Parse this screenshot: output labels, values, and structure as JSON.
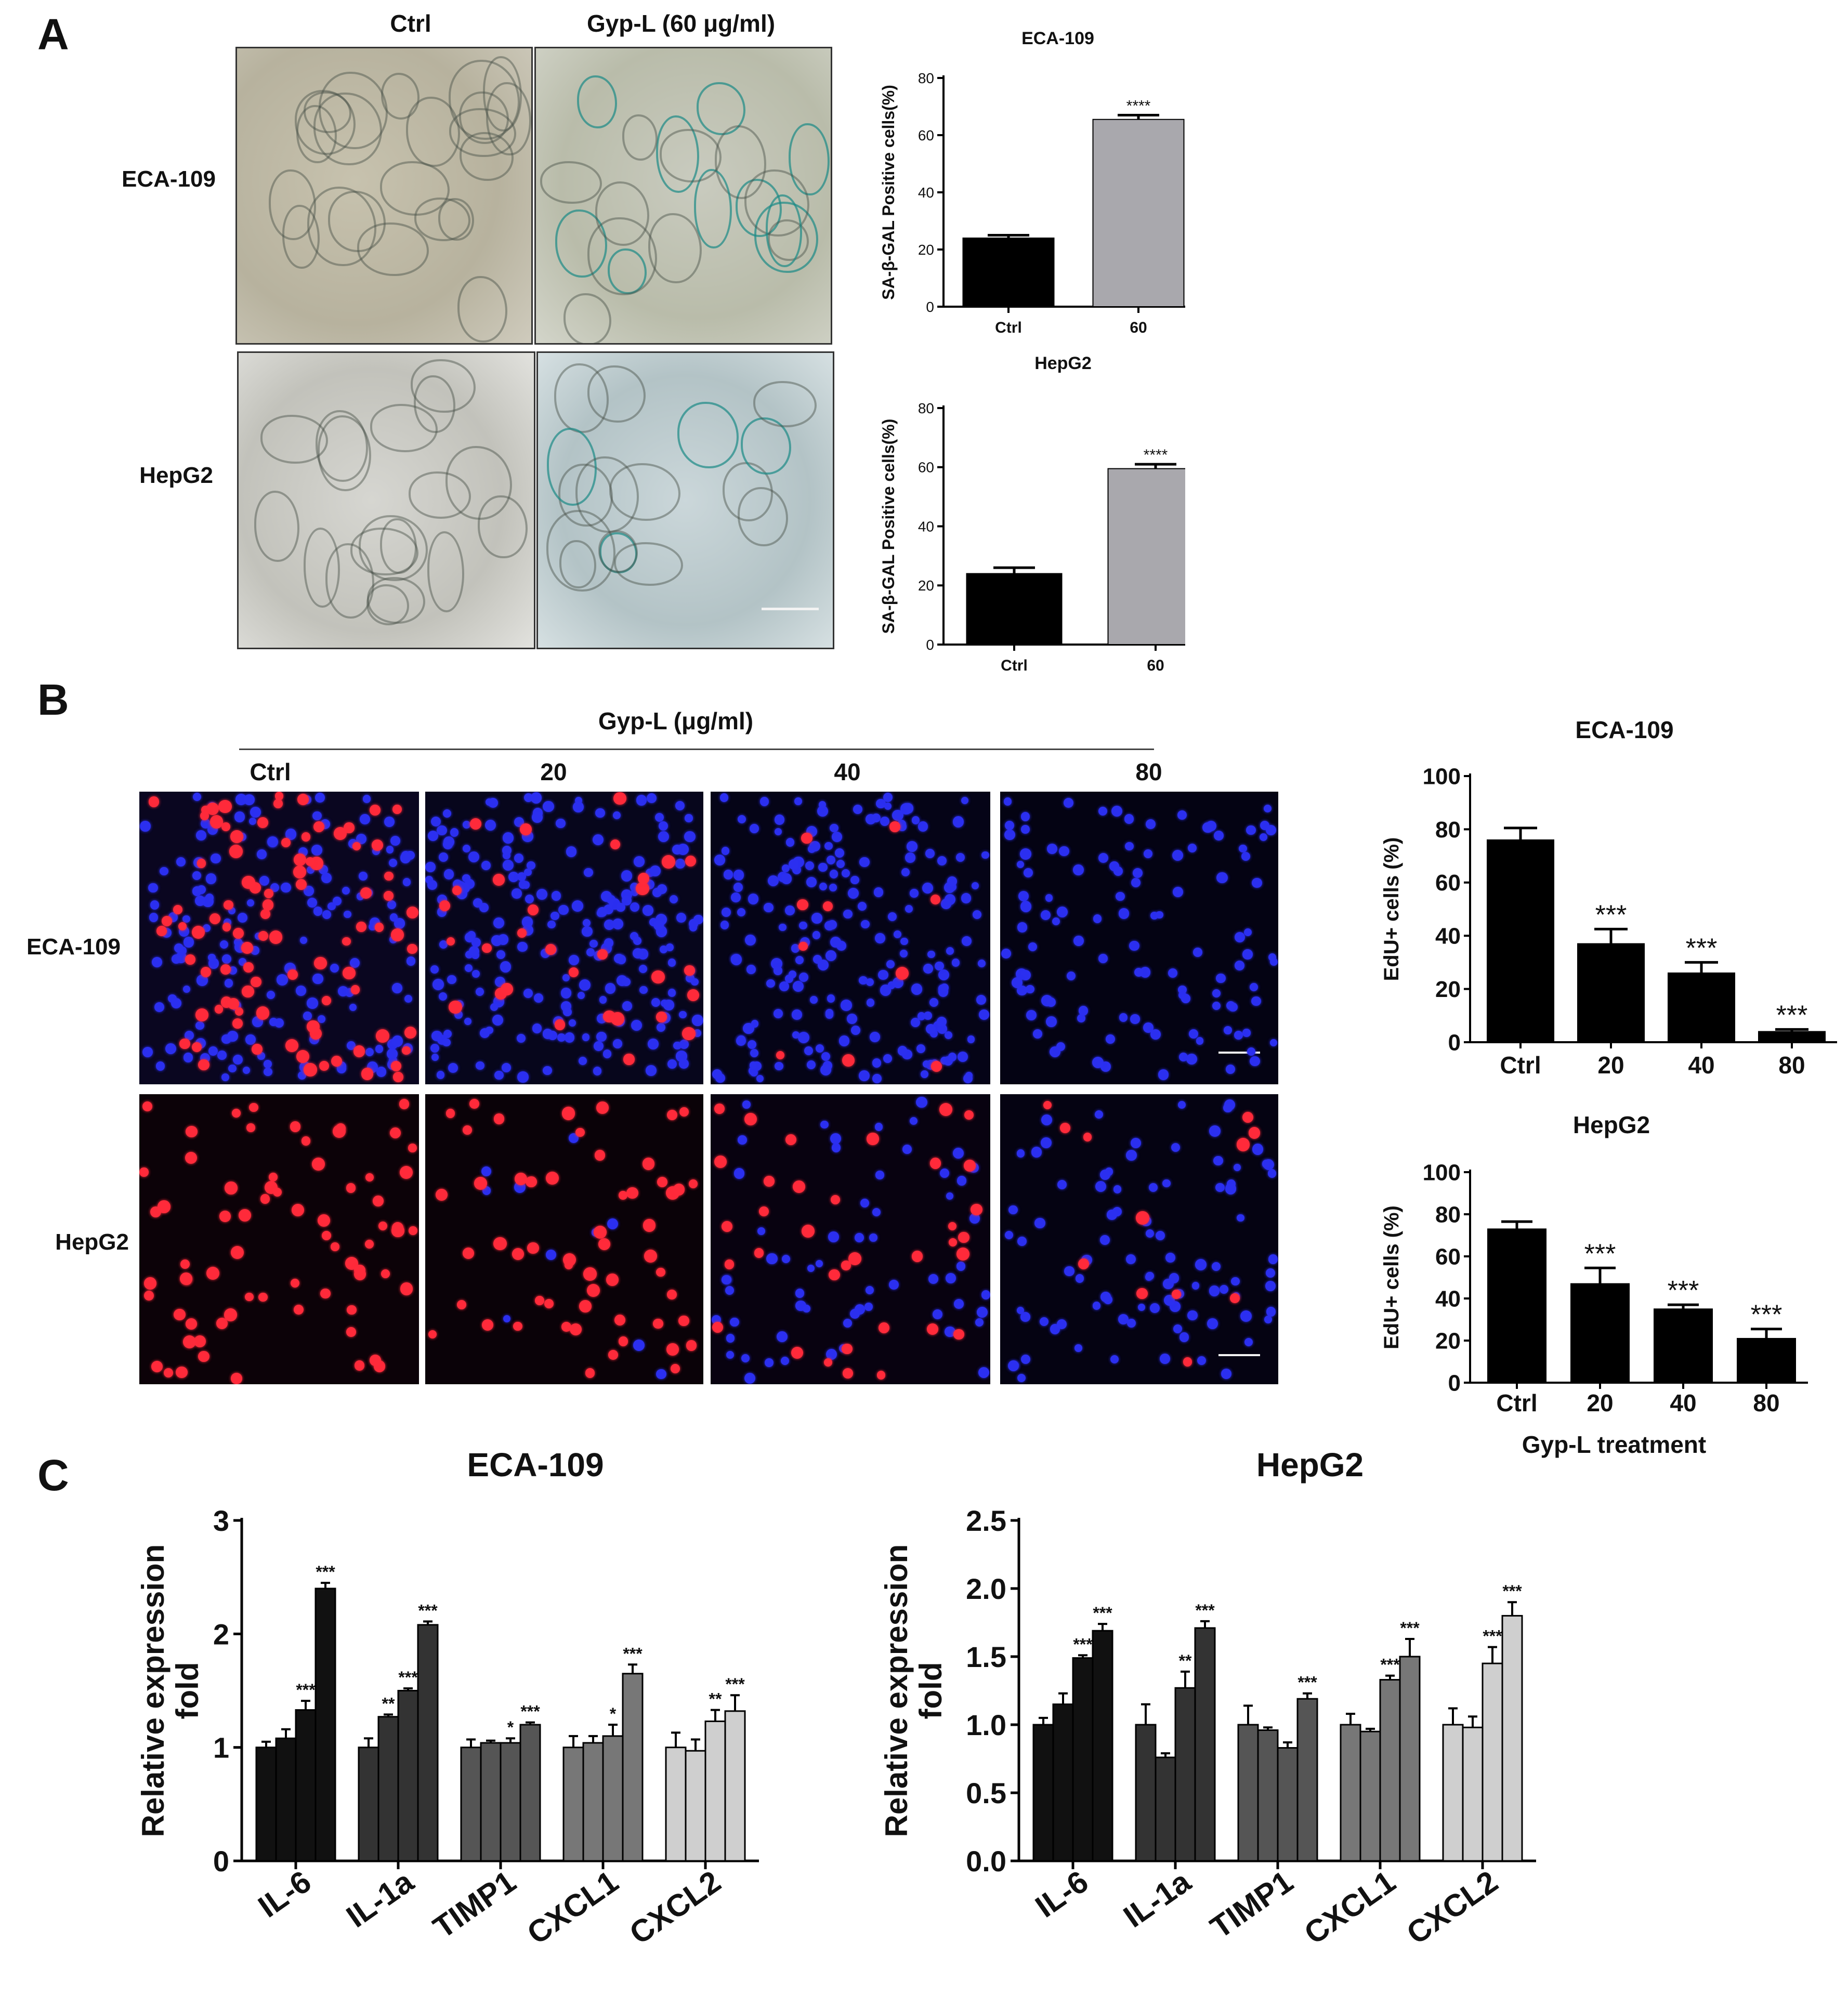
{
  "panels": {
    "a": "A",
    "b": "B",
    "c": "C"
  },
  "panelA": {
    "col_ctrl": "Ctrl",
    "col_gyp": "Gyp-L (60 μg/ml)",
    "row_eca": "ECA-109",
    "row_hepg2": "HepG2"
  },
  "panelB": {
    "header": "Gyp-L (μg/ml)",
    "cols": [
      "Ctrl",
      "20",
      "40",
      "80"
    ],
    "row_eca": "ECA-109",
    "row_hepg2": "HepG2"
  },
  "colors": {
    "black_bar": "#000000",
    "grey_bar": "#a9a8ad",
    "edu_red": "#ff2a3a",
    "dapi_blue": "#2b2ff0",
    "sa_gal_blue": "#1b8a86",
    "c_series": [
      "#111111",
      "#333333",
      "#555555",
      "#777777",
      "#cfcfcf"
    ]
  },
  "chart_data": [
    {
      "id": "a_eca",
      "type": "bar",
      "title": "ECA-109",
      "xlabel": "",
      "ylabel": "SA-β-GAL Positive cells(%)",
      "categories": [
        "Ctrl",
        "60"
      ],
      "values": [
        24,
        65.5
      ],
      "errors": [
        1,
        1.5
      ],
      "sig": [
        "",
        "****"
      ],
      "colors": [
        "#000000",
        "#a9a8ad"
      ],
      "ylim": [
        0,
        80
      ],
      "yticks": [
        0,
        20,
        40,
        60,
        80
      ]
    },
    {
      "id": "a_hep",
      "type": "bar",
      "title": "HepG2",
      "xlabel": "",
      "ylabel": "SA-β-GAL Positive cells(%)",
      "categories": [
        "Ctrl",
        "60"
      ],
      "values": [
        24,
        59.5
      ],
      "errors": [
        2,
        1.5
      ],
      "sig": [
        "",
        "****"
      ],
      "colors": [
        "#000000",
        "#a9a8ad"
      ],
      "ylim": [
        0,
        80
      ],
      "yticks": [
        0,
        20,
        40,
        60,
        80
      ]
    },
    {
      "id": "b_eca",
      "type": "bar",
      "title": "ECA-109",
      "xlabel": "",
      "ylabel": "EdU+ cells (%)",
      "categories": [
        "Ctrl",
        "20",
        "40",
        "80"
      ],
      "values": [
        76,
        37,
        26,
        4
      ],
      "errors": [
        4.5,
        5.5,
        4,
        0.8
      ],
      "sig": [
        "",
        "***",
        "***",
        "***"
      ],
      "colors": [
        "#000000",
        "#000000",
        "#000000",
        "#000000"
      ],
      "ylim": [
        0,
        100
      ],
      "yticks": [
        0,
        20,
        40,
        60,
        80,
        100
      ]
    },
    {
      "id": "b_hep",
      "type": "bar",
      "title": "HepG2",
      "xlabel": "Gyp-L treatment",
      "ylabel": "EdU+ cells (%)",
      "categories": [
        "Ctrl",
        "20",
        "40",
        "80"
      ],
      "values": [
        73,
        47,
        35,
        21
      ],
      "errors": [
        3.5,
        7.5,
        2,
        4.5
      ],
      "sig": [
        "",
        "***",
        "***",
        "***"
      ],
      "colors": [
        "#000000",
        "#000000",
        "#000000",
        "#000000"
      ],
      "ylim": [
        0,
        100
      ],
      "yticks": [
        0,
        20,
        40,
        60,
        80,
        100
      ]
    },
    {
      "id": "c_eca",
      "type": "bar",
      "title": "ECA-109",
      "xlabel": "",
      "ylabel": "Relative expression fold",
      "categories": [
        "IL-6",
        "IL-1a",
        "TIMP1",
        "CXCL1",
        "CXCL2"
      ],
      "group_colors": [
        "#111111",
        "#333333",
        "#555555",
        "#777777",
        "#cfcfcf"
      ],
      "values": [
        [
          1.0,
          1.08,
          1.33,
          2.4
        ],
        [
          1.0,
          1.27,
          1.5,
          2.08
        ],
        [
          1.0,
          1.04,
          1.04,
          1.2
        ],
        [
          1.0,
          1.04,
          1.1,
          1.65
        ],
        [
          1.0,
          0.97,
          1.23,
          1.32
        ]
      ],
      "errors": [
        [
          0.05,
          0.08,
          0.08,
          0.05
        ],
        [
          0.08,
          0.02,
          0.02,
          0.03
        ],
        [
          0.07,
          0.02,
          0.04,
          0.02
        ],
        [
          0.1,
          0.06,
          0.1,
          0.08
        ],
        [
          0.13,
          0.1,
          0.1,
          0.14
        ]
      ],
      "sig": [
        [
          "",
          "",
          "***",
          "***"
        ],
        [
          "",
          "**",
          "***",
          "***"
        ],
        [
          "",
          "",
          "*",
          "***"
        ],
        [
          "",
          "",
          "*",
          "***"
        ],
        [
          "",
          "",
          "**",
          "***"
        ]
      ],
      "ylim": [
        0,
        3
      ],
      "yticks": [
        0,
        1,
        2,
        3
      ]
    },
    {
      "id": "c_hep",
      "type": "bar",
      "title": "HepG2",
      "xlabel": "",
      "ylabel": "Relative expression fold",
      "categories": [
        "IL-6",
        "IL-1a",
        "TIMP1",
        "CXCL1",
        "CXCL2"
      ],
      "group_colors": [
        "#111111",
        "#333333",
        "#555555",
        "#777777",
        "#cfcfcf"
      ],
      "values": [
        [
          1.0,
          1.15,
          1.49,
          1.69
        ],
        [
          1.0,
          0.76,
          1.27,
          1.71
        ],
        [
          1.0,
          0.96,
          0.83,
          1.19
        ],
        [
          1.0,
          0.95,
          1.33,
          1.5
        ],
        [
          1.0,
          0.98,
          1.45,
          1.8
        ]
      ],
      "errors": [
        [
          0.05,
          0.08,
          0.02,
          0.05
        ],
        [
          0.15,
          0.03,
          0.12,
          0.05
        ],
        [
          0.14,
          0.02,
          0.04,
          0.04
        ],
        [
          0.08,
          0.02,
          0.03,
          0.13
        ],
        [
          0.12,
          0.08,
          0.12,
          0.1
        ]
      ],
      "sig": [
        [
          "",
          "",
          "***",
          "***"
        ],
        [
          "",
          "",
          "**",
          "***"
        ],
        [
          "",
          "",
          "",
          "***"
        ],
        [
          "",
          "",
          "***",
          "***"
        ],
        [
          "",
          "",
          "***",
          "***"
        ]
      ],
      "ylim": [
        0,
        2.5
      ],
      "yticks": [
        "0.0",
        "0.5",
        "1.0",
        "1.5",
        "2.0",
        "2.5"
      ]
    }
  ]
}
